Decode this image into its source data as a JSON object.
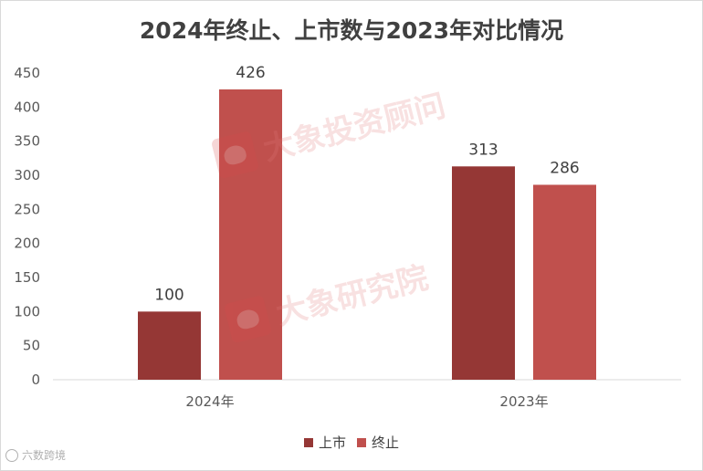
{
  "chart_data": {
    "type": "bar",
    "title": "2024年终止、上市数与2023年对比情况",
    "categories": [
      "2024年",
      "2023年"
    ],
    "series": [
      {
        "name": "上市",
        "values": [
          100,
          313
        ],
        "color": "#953735"
      },
      {
        "name": "终止",
        "values": [
          426,
          286
        ],
        "color": "#c0504d"
      }
    ],
    "ylim": [
      0,
      450
    ],
    "yticks": [
      0,
      50,
      100,
      150,
      200,
      250,
      300,
      350,
      400,
      450
    ],
    "data_labels": true,
    "grid": false,
    "legend_position": "bottom"
  },
  "watermarks": [
    "大象投资顾问",
    "大象研究院"
  ],
  "footer_mark": "六数跨境"
}
